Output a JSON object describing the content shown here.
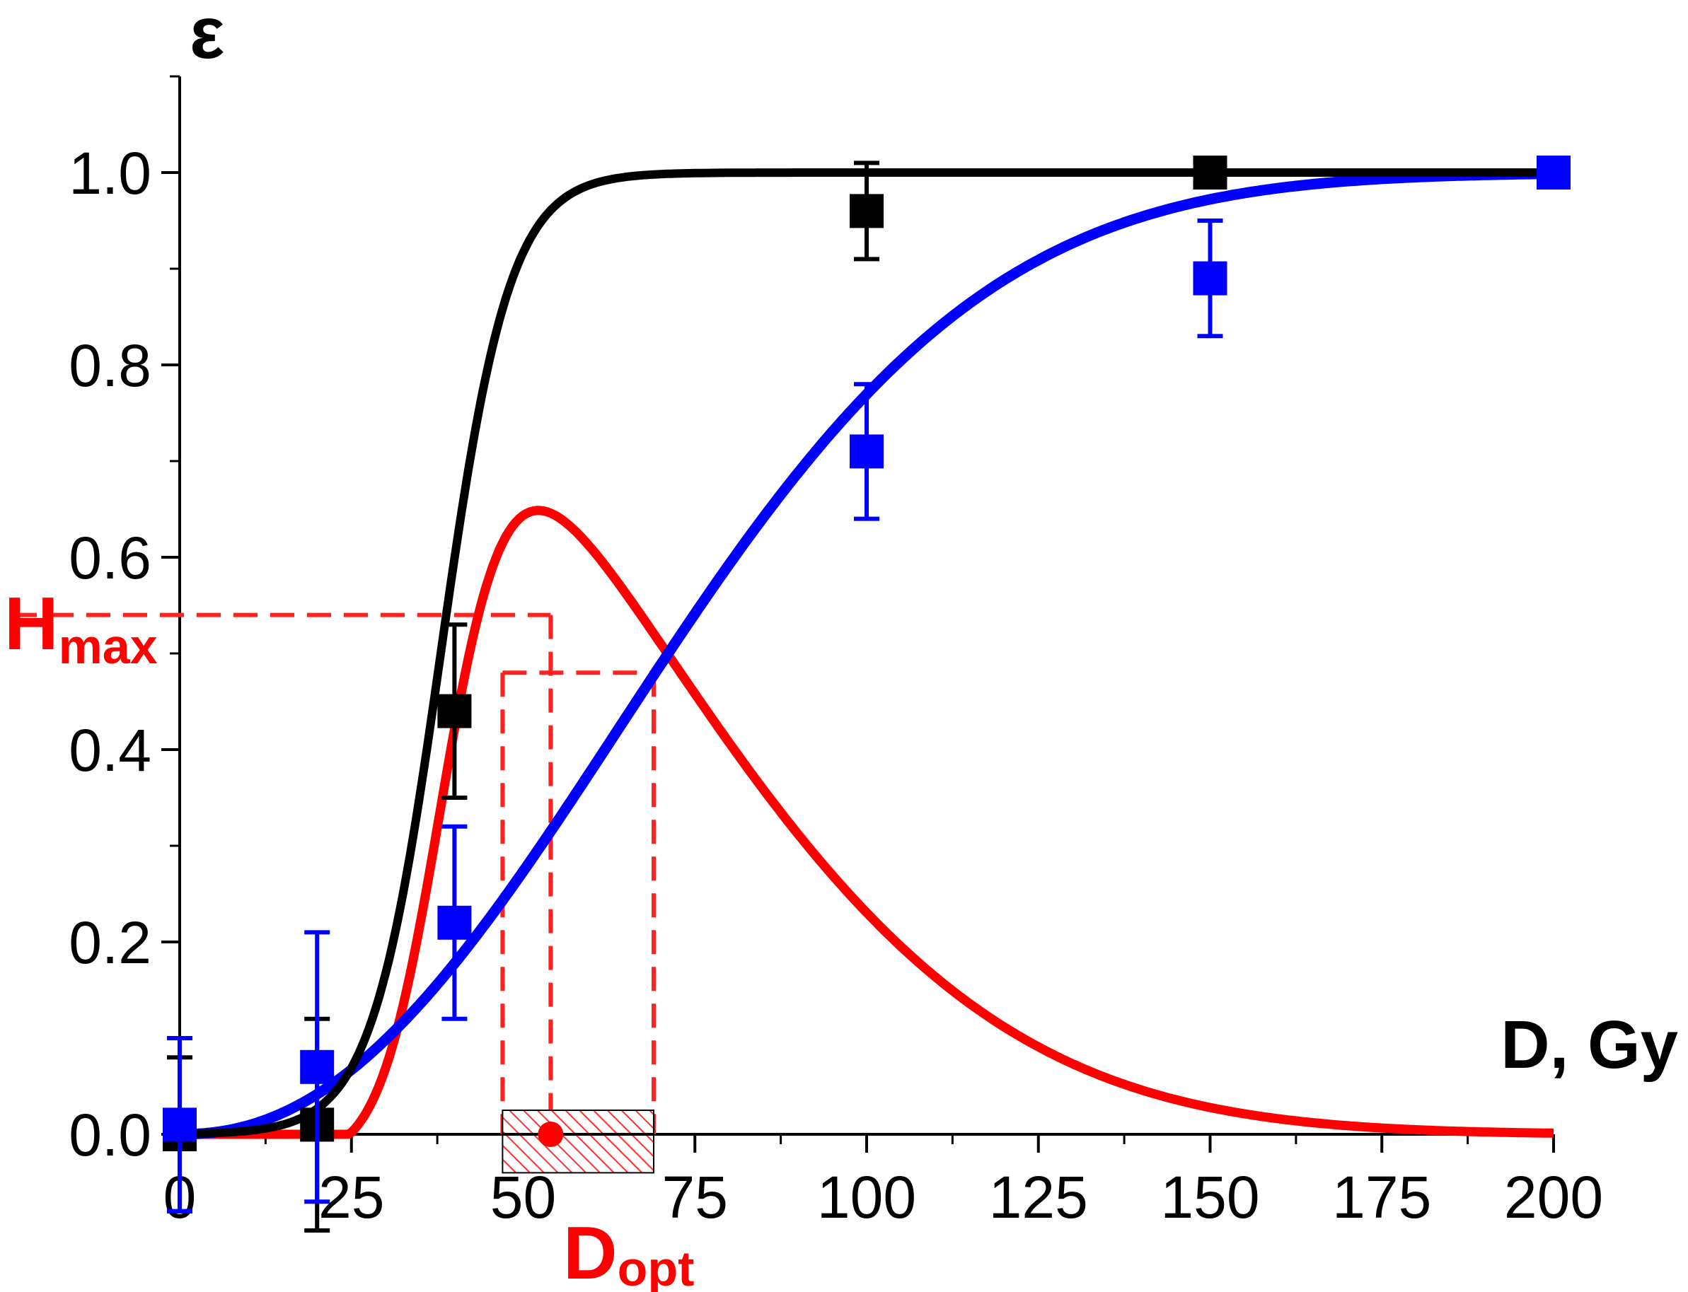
{
  "chart_data": {
    "type": "line",
    "xlabel": "D, Gy",
    "ylabel": "ε",
    "xlim": [
      0,
      200
    ],
    "ylim": [
      0,
      1.1
    ],
    "x_ticks": [
      0,
      25,
      50,
      75,
      100,
      125,
      150,
      175,
      200
    ],
    "x_tick_labels": [
      "0",
      "25",
      "50",
      "75",
      "100",
      "125",
      "150",
      "175",
      "200"
    ],
    "y_ticks": [
      0,
      0.2,
      0.4,
      0.6,
      0.8,
      1.0
    ],
    "y_tick_labels": [
      "0.0",
      "0.2",
      "0.4",
      "0.6",
      "0.8",
      "1.0"
    ],
    "grid": false,
    "series": [
      {
        "color": "#000000",
        "points": [
          {
            "x": 0,
            "y": 0.0,
            "err": 0.08
          },
          {
            "x": 20,
            "y": 0.01,
            "err": 0.11
          },
          {
            "x": 40,
            "y": 0.44,
            "err": 0.09
          },
          {
            "x": 100,
            "y": 0.96,
            "err": 0.05
          },
          {
            "x": 150,
            "y": 1.0,
            "err": 0.0
          },
          {
            "x": 200,
            "y": 1.0,
            "err": 0.0
          }
        ],
        "fit": {
          "model": "logistic",
          "x50": 38,
          "slope": 0.2
        }
      },
      {
        "color": "#0000ff",
        "points": [
          {
            "x": 0,
            "y": 0.01,
            "err": 0.09
          },
          {
            "x": 20,
            "y": 0.07,
            "err": 0.14
          },
          {
            "x": 40,
            "y": 0.22,
            "err": 0.1
          },
          {
            "x": 100,
            "y": 0.71,
            "err": 0.07
          },
          {
            "x": 150,
            "y": 0.89,
            "err": 0.06
          },
          {
            "x": 200,
            "y": 1.0,
            "err": 0.0
          }
        ],
        "fit": {
          "model": "weibull",
          "lambda": 84,
          "k": 2.2
        }
      },
      {
        "color": "#ff0000",
        "curve": "difference of black and blue fits"
      }
    ],
    "annotations": {
      "h_max": {
        "label_main": "H",
        "label_sub": "max",
        "y": 0.54,
        "x": 54
      },
      "h_level": {
        "y": 0.48,
        "x_left": 47,
        "x_right": 69
      },
      "d_opt": {
        "label_main": "D",
        "label_sub": "opt",
        "x": 54,
        "range": [
          47,
          69
        ]
      }
    }
  }
}
